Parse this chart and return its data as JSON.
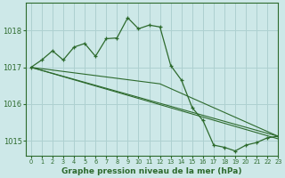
{
  "title": "Graphe pression niveau de la mer (hPa)",
  "background_color": "#cde8e8",
  "grid_color": "#aed0d0",
  "line_color": "#2d6a2d",
  "xlim": [
    -0.5,
    23
  ],
  "ylim": [
    1014.6,
    1018.75
  ],
  "yticks": [
    1015,
    1016,
    1017,
    1018
  ],
  "xticks": [
    0,
    1,
    2,
    3,
    4,
    5,
    6,
    7,
    8,
    9,
    10,
    11,
    12,
    13,
    14,
    15,
    16,
    17,
    18,
    19,
    20,
    21,
    22,
    23
  ],
  "main_series_x": [
    0,
    1,
    2,
    3,
    4,
    5,
    6,
    7,
    8,
    9,
    10,
    11,
    12,
    13,
    14,
    15,
    16,
    17,
    18,
    19,
    20,
    21,
    22,
    23
  ],
  "main_series_y": [
    1017.0,
    1017.2,
    1017.45,
    1017.2,
    1017.55,
    1017.65,
    1017.3,
    1017.78,
    1017.8,
    1018.35,
    1018.05,
    1018.15,
    1018.1,
    1017.05,
    1016.65,
    1015.9,
    1015.55,
    1014.88,
    1014.82,
    1014.72,
    1014.88,
    1014.95,
    1015.08,
    1015.12
  ],
  "straight_line1_x": [
    0,
    23
  ],
  "straight_line1_y": [
    1017.0,
    1015.12
  ],
  "straight_line2_x": [
    0,
    23
  ],
  "straight_line2_y": [
    1017.0,
    1015.05
  ],
  "straight_line3_x": [
    0,
    12,
    23
  ],
  "straight_line3_y": [
    1017.0,
    1016.55,
    1015.12
  ],
  "xlabel_fontsize": 6.5,
  "ytick_fontsize": 6,
  "xtick_fontsize": 4.8
}
